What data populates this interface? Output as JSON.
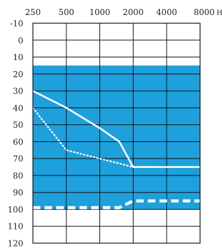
{
  "chart_data": {
    "type": "line",
    "title": "",
    "x_unit": "Hz",
    "x": [
      "250",
      "500",
      "1000",
      "2000",
      "4000",
      "8000"
    ],
    "x_tick_labels": [
      "250",
      "500",
      "1000",
      "2000",
      "4000",
      "8000"
    ],
    "y_tick_labels": [
      "-10",
      "0",
      "10",
      "20",
      "30",
      "40",
      "50",
      "60",
      "70",
      "80",
      "90",
      "100",
      "110",
      "120"
    ],
    "ylim": [
      -10,
      120
    ],
    "y_inverted": true,
    "grid": true,
    "band": {
      "from_db": 15,
      "to_db": 100,
      "color": "#1ea0dc"
    },
    "series": [
      {
        "style": "solid",
        "color": "#ffffff",
        "points": [
          {
            "x": 250,
            "y": 30
          },
          {
            "x": 500,
            "y": 40
          },
          {
            "x": 1000,
            "y": 52
          },
          {
            "x": 1500,
            "y": 60
          },
          {
            "x": 2000,
            "y": 75
          },
          {
            "x": 8000,
            "y": 75
          }
        ]
      },
      {
        "style": "dotted",
        "color": "#ffffff",
        "points": [
          {
            "x": 250,
            "y": 40
          },
          {
            "x": 500,
            "y": 65
          },
          {
            "x": 1000,
            "y": 70
          },
          {
            "x": 2000,
            "y": 75
          },
          {
            "x": 8000,
            "y": 75
          }
        ]
      },
      {
        "style": "dashed",
        "color": "#ffffff",
        "points": [
          {
            "x": 250,
            "y": 99
          },
          {
            "x": 1500,
            "y": 99
          },
          {
            "x": 2000,
            "y": 95
          },
          {
            "x": 8000,
            "y": 95
          }
        ]
      }
    ]
  }
}
